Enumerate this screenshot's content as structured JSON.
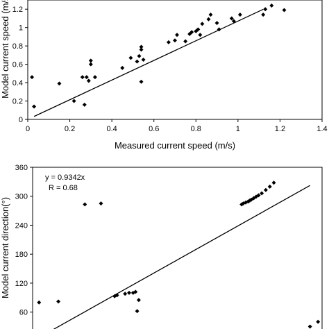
{
  "chart_data": [
    {
      "type": "scatter",
      "title": "",
      "xlabel": "Measured current speed (m/s)",
      "ylabel": "Model current speed (m/s)",
      "xlim": [
        0,
        1.4
      ],
      "ylim": [
        0,
        1.3
      ],
      "x_ticks": [
        0,
        0.2,
        0.4,
        0.6,
        0.8,
        1,
        1.2,
        1.4
      ],
      "y_ticks": [
        0,
        0.2,
        0.4,
        0.6,
        0.8,
        1,
        1.2
      ],
      "x_tick_labels": [
        "0",
        "0.2",
        "0.4",
        "0.6",
        "0.8",
        "1",
        "1.2",
        "1.4"
      ],
      "y_tick_labels": [
        "0",
        "0.2",
        "0.4",
        "0.6",
        "0.8",
        "1",
        "1.2"
      ],
      "grid": false,
      "points": [
        [
          0.02,
          0.46
        ],
        [
          0.03,
          0.14
        ],
        [
          0.15,
          0.39
        ],
        [
          0.22,
          0.2
        ],
        [
          0.26,
          0.46
        ],
        [
          0.27,
          0.16
        ],
        [
          0.28,
          0.46
        ],
        [
          0.29,
          0.42
        ],
        [
          0.3,
          0.6
        ],
        [
          0.3,
          0.64
        ],
        [
          0.32,
          0.46
        ],
        [
          0.45,
          0.56
        ],
        [
          0.49,
          0.67
        ],
        [
          0.52,
          0.63
        ],
        [
          0.53,
          0.69
        ],
        [
          0.54,
          0.41
        ],
        [
          0.54,
          0.76
        ],
        [
          0.54,
          0.79
        ],
        [
          0.55,
          0.65
        ],
        [
          0.67,
          0.84
        ],
        [
          0.7,
          0.86
        ],
        [
          0.71,
          0.92
        ],
        [
          0.75,
          0.85
        ],
        [
          0.77,
          0.93
        ],
        [
          0.78,
          0.95
        ],
        [
          0.8,
          0.96
        ],
        [
          0.81,
          0.98
        ],
        [
          0.82,
          0.92
        ],
        [
          0.83,
          1.04
        ],
        [
          0.86,
          1.09
        ],
        [
          0.87,
          1.14
        ],
        [
          0.9,
          1.05
        ],
        [
          0.91,
          0.98
        ],
        [
          0.97,
          1.1
        ],
        [
          0.98,
          1.07
        ],
        [
          1.01,
          1.14
        ],
        [
          1.12,
          1.14
        ],
        [
          1.13,
          1.2
        ],
        [
          1.16,
          1.24
        ],
        [
          1.22,
          1.19
        ]
      ],
      "trendline": {
        "slope": 1.07,
        "x_range": [
          0.03,
          1.12
        ]
      }
    },
    {
      "type": "scatter",
      "title": "",
      "xlabel": "",
      "ylabel": "Model current direction(°)",
      "xlim": [
        0,
        360
      ],
      "ylim": [
        25,
        360
      ],
      "y_ticks": [
        60,
        120,
        180,
        240,
        300,
        360
      ],
      "y_tick_labels": [
        "60",
        "120",
        "180",
        "240",
        "300",
        "360"
      ],
      "grid": false,
      "annotation": [
        "y = 0.9342x",
        "R = 0.68"
      ],
      "points": [
        [
          8,
          80
        ],
        [
          32,
          82
        ],
        [
          65,
          283
        ],
        [
          85,
          285
        ],
        [
          102,
          93
        ],
        [
          105,
          95
        ],
        [
          115,
          98
        ],
        [
          120,
          100
        ],
        [
          125,
          100
        ],
        [
          128,
          102
        ],
        [
          130,
          62
        ],
        [
          132,
          85
        ],
        [
          260,
          283
        ],
        [
          262,
          285
        ],
        [
          265,
          287
        ],
        [
          268,
          289
        ],
        [
          270,
          291
        ],
        [
          272,
          293
        ],
        [
          275,
          296
        ],
        [
          278,
          299
        ],
        [
          281,
          302
        ],
        [
          285,
          306
        ],
        [
          290,
          313
        ],
        [
          295,
          320
        ],
        [
          300,
          328
        ],
        [
          345,
          30
        ],
        [
          355,
          40
        ]
      ],
      "trendline": {
        "slope": 0.9342,
        "x_range": [
          8,
          345
        ]
      }
    }
  ]
}
